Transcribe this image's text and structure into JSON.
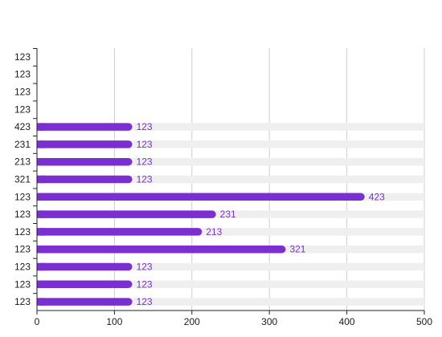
{
  "chart_data": {
    "type": "bar",
    "orientation": "horizontal",
    "title": "",
    "xlabel": "",
    "ylabel": "",
    "xlim": [
      0,
      500
    ],
    "x_ticks": [
      0,
      100,
      200,
      300,
      400,
      500
    ],
    "grid": true,
    "categories": [
      "123",
      "123",
      "123",
      "123",
      "423",
      "231",
      "213",
      "321",
      "123",
      "123",
      "123",
      "123",
      "123",
      "123",
      "123"
    ],
    "values": [
      null,
      null,
      null,
      null,
      123,
      123,
      123,
      123,
      423,
      231,
      213,
      321,
      123,
      123,
      123
    ],
    "data_labels": [
      "",
      "",
      "",
      "",
      "123",
      "123",
      "123",
      "123",
      "423",
      "231",
      "213",
      "321",
      "123",
      "123",
      "123"
    ],
    "track_max": 500,
    "colors": {
      "bar": "#7b2fd0",
      "track": "#efefef",
      "grid": "#cccccc",
      "axis": "#222222",
      "label": "#7b2fd0"
    }
  }
}
